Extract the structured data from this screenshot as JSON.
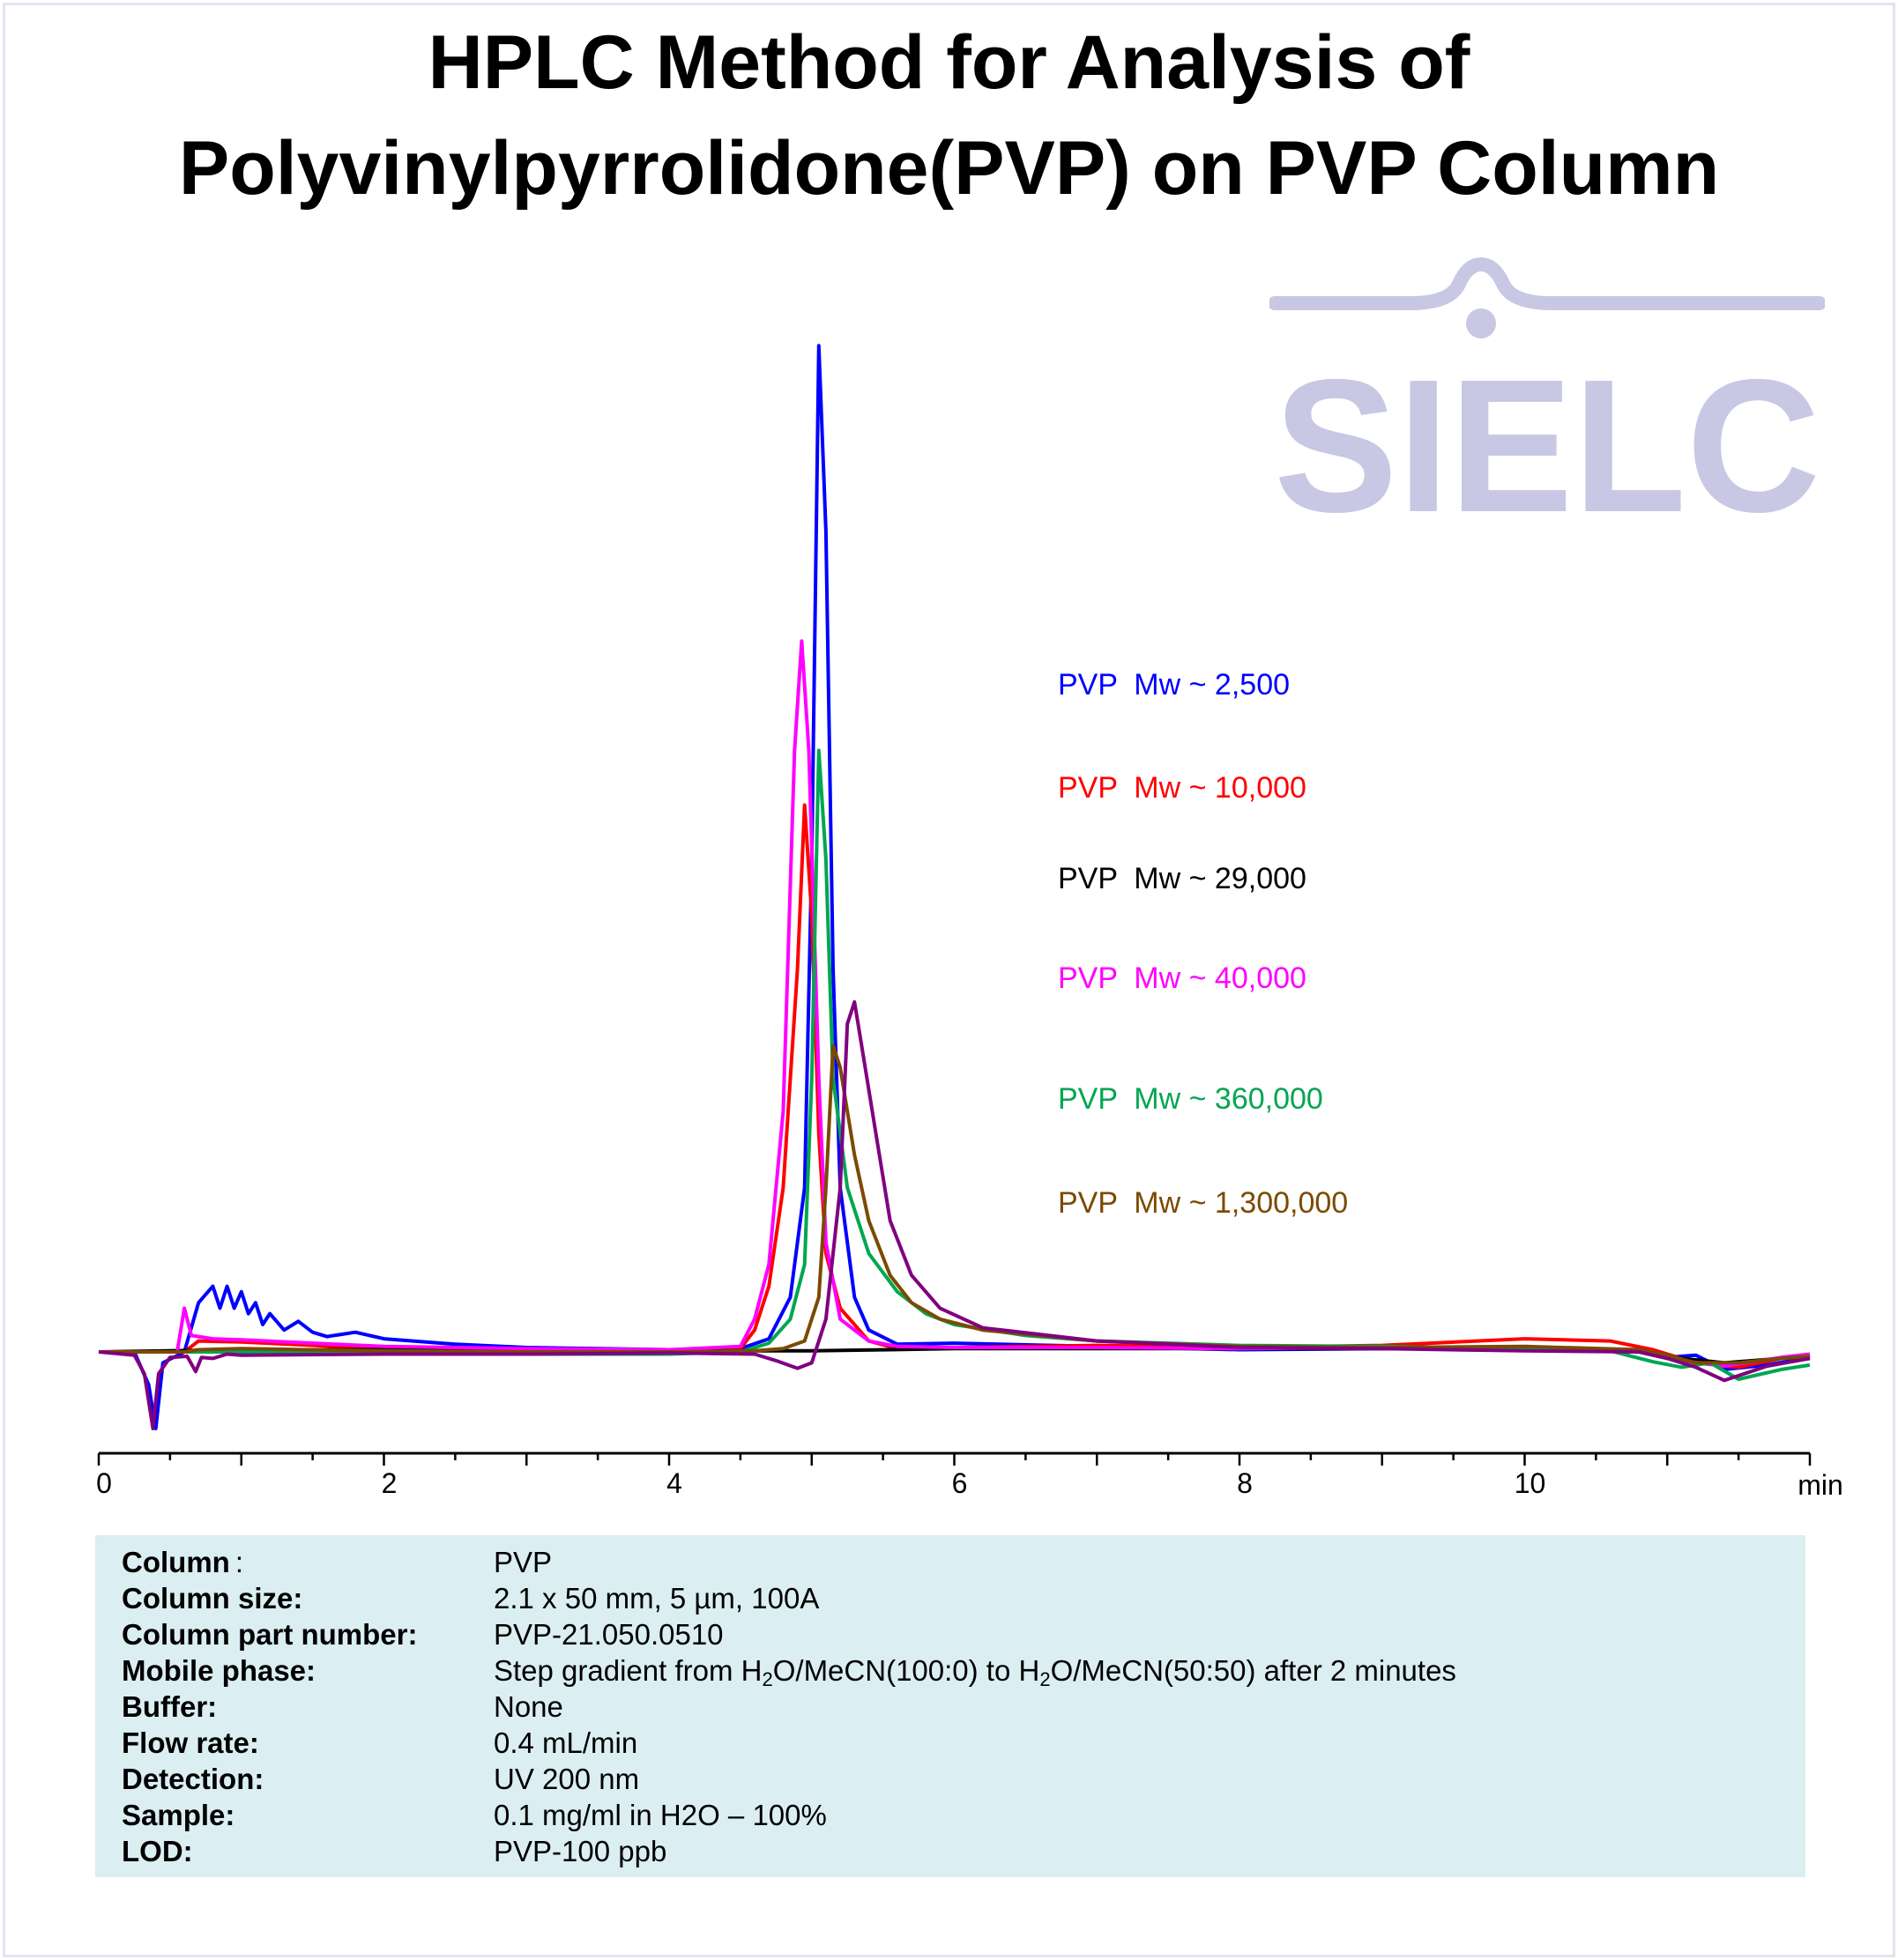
{
  "title": {
    "line1": "HPLC Method for Analysis of",
    "line2": "Polyvinylpyrrolidone(PVP) on PVP Column"
  },
  "logo": {
    "text": "SIELC",
    "color": "#c8c8e4"
  },
  "chart_data": {
    "type": "line",
    "title": "HPLC Method for Analysis of Polyvinylpyrrolidone(PVP) on PVP Column",
    "xlabel": "min",
    "ylabel": "",
    "xlim": [
      0,
      12
    ],
    "x_ticks": [
      0,
      2,
      4,
      6,
      8,
      10
    ],
    "x_tick_labels": [
      "0",
      "2",
      "4",
      "6",
      "8",
      "10"
    ],
    "x_unit_label": "min",
    "ylim": [
      -15,
      100
    ],
    "grid": false,
    "legend_position": "right",
    "series": [
      {
        "name": "PVP  Mw ~ 2,500",
        "color": "#0000ff",
        "points": [
          [
            0,
            0
          ],
          [
            0.25,
            0
          ],
          [
            0.35,
            -3
          ],
          [
            0.4,
            -7
          ],
          [
            0.45,
            -1
          ],
          [
            0.6,
            0
          ],
          [
            0.7,
            4.5
          ],
          [
            0.8,
            6
          ],
          [
            0.85,
            4
          ],
          [
            0.9,
            6
          ],
          [
            0.95,
            4
          ],
          [
            1.0,
            5.5
          ],
          [
            1.05,
            3.5
          ],
          [
            1.1,
            4.5
          ],
          [
            1.15,
            2.5
          ],
          [
            1.2,
            3.5
          ],
          [
            1.3,
            2
          ],
          [
            1.4,
            2.8
          ],
          [
            1.5,
            1.8
          ],
          [
            1.6,
            1.4
          ],
          [
            1.8,
            1.8
          ],
          [
            2.0,
            1.2
          ],
          [
            2.5,
            0.7
          ],
          [
            3.0,
            0.4
          ],
          [
            3.5,
            0.3
          ],
          [
            4.0,
            0.2
          ],
          [
            4.5,
            0.3
          ],
          [
            4.7,
            1.2
          ],
          [
            4.85,
            5
          ],
          [
            4.95,
            15
          ],
          [
            5.0,
            45
          ],
          [
            5.05,
            92
          ],
          [
            5.1,
            75
          ],
          [
            5.15,
            35
          ],
          [
            5.2,
            15
          ],
          [
            5.3,
            5
          ],
          [
            5.4,
            2
          ],
          [
            5.6,
            0.7
          ],
          [
            6.0,
            0.8
          ],
          [
            7.0,
            0.5
          ],
          [
            8.0,
            0.2
          ],
          [
            9.0,
            0.3
          ],
          [
            10.0,
            0.3
          ],
          [
            10.8,
            0.1
          ],
          [
            11.0,
            -0.5
          ],
          [
            11.2,
            -0.3
          ],
          [
            11.4,
            -1.6
          ],
          [
            11.7,
            -1.2
          ],
          [
            12.0,
            -0.5
          ]
        ]
      },
      {
        "name": "PVP  Mw ~ 10,000",
        "color": "#ff0000",
        "points": [
          [
            0,
            0
          ],
          [
            0.6,
            0
          ],
          [
            0.7,
            1
          ],
          [
            1.0,
            0.9
          ],
          [
            2.0,
            0.3
          ],
          [
            3.0,
            0.1
          ],
          [
            4.0,
            0.1
          ],
          [
            4.5,
            0.3
          ],
          [
            4.6,
            2
          ],
          [
            4.7,
            6
          ],
          [
            4.8,
            15
          ],
          [
            4.9,
            35
          ],
          [
            4.95,
            50
          ],
          [
            5.0,
            40
          ],
          [
            5.05,
            20
          ],
          [
            5.1,
            9
          ],
          [
            5.2,
            4
          ],
          [
            5.4,
            1
          ],
          [
            5.6,
            0.3
          ],
          [
            6.0,
            0.4
          ],
          [
            7.0,
            0.6
          ],
          [
            8.0,
            0.4
          ],
          [
            9.0,
            0.6
          ],
          [
            10.0,
            1.2
          ],
          [
            10.6,
            1.0
          ],
          [
            10.9,
            0.2
          ],
          [
            11.2,
            -1.0
          ],
          [
            11.5,
            -1.4
          ],
          [
            11.8,
            -0.6
          ],
          [
            12.0,
            -0.3
          ]
        ]
      },
      {
        "name": "PVP  Mw ~ 29,000",
        "color": "#000000",
        "points": [
          [
            0,
            0
          ],
          [
            1.0,
            0.2
          ],
          [
            2.0,
            0.2
          ],
          [
            3.0,
            0.1
          ],
          [
            4.0,
            0.1
          ],
          [
            5.0,
            0.1
          ],
          [
            6.0,
            0.3
          ],
          [
            7.0,
            0.3
          ],
          [
            8.0,
            0.3
          ],
          [
            9.0,
            0.3
          ],
          [
            10.0,
            0.3
          ],
          [
            10.8,
            0.1
          ],
          [
            11.1,
            -0.6
          ],
          [
            11.4,
            -1.0
          ],
          [
            11.8,
            -0.6
          ],
          [
            12.0,
            -0.3
          ]
        ]
      },
      {
        "name": "PVP  Mw ~ 40,000",
        "color": "#ff00ff",
        "points": [
          [
            0,
            0
          ],
          [
            0.55,
            0
          ],
          [
            0.6,
            4
          ],
          [
            0.65,
            1.5
          ],
          [
            0.8,
            1.2
          ],
          [
            1.0,
            1.1
          ],
          [
            2.0,
            0.5
          ],
          [
            3.0,
            0.3
          ],
          [
            4.0,
            0.2
          ],
          [
            4.5,
            0.5
          ],
          [
            4.6,
            3
          ],
          [
            4.7,
            8
          ],
          [
            4.8,
            22
          ],
          [
            4.88,
            55
          ],
          [
            4.93,
            65
          ],
          [
            4.98,
            55
          ],
          [
            5.05,
            25
          ],
          [
            5.1,
            10
          ],
          [
            5.2,
            3
          ],
          [
            5.4,
            1
          ],
          [
            5.6,
            0.5
          ],
          [
            6.0,
            0.4
          ],
          [
            7.0,
            0.4
          ],
          [
            8.0,
            0.3
          ],
          [
            9.0,
            0.4
          ],
          [
            10.0,
            0.4
          ],
          [
            10.8,
            0.2
          ],
          [
            11.1,
            -0.8
          ],
          [
            11.4,
            -1.3
          ],
          [
            11.8,
            -0.5
          ],
          [
            12.0,
            -0.2
          ]
        ]
      },
      {
        "name": "PVP  Mw ~ 360,000",
        "color": "#00a651",
        "points": [
          [
            0,
            0
          ],
          [
            1.0,
            0
          ],
          [
            2.0,
            -0.1
          ],
          [
            3.0,
            -0.2
          ],
          [
            4.0,
            -0.2
          ],
          [
            4.5,
            0
          ],
          [
            4.7,
            0.8
          ],
          [
            4.85,
            3
          ],
          [
            4.95,
            8
          ],
          [
            5.0,
            25
          ],
          [
            5.05,
            55
          ],
          [
            5.1,
            45
          ],
          [
            5.15,
            25
          ],
          [
            5.25,
            15
          ],
          [
            5.4,
            9
          ],
          [
            5.6,
            5.5
          ],
          [
            5.8,
            3.5
          ],
          [
            6.0,
            2.5
          ],
          [
            6.5,
            1.5
          ],
          [
            7.0,
            1.0
          ],
          [
            8.0,
            0.6
          ],
          [
            9.0,
            0.5
          ],
          [
            10.0,
            0.3
          ],
          [
            10.6,
            0.1
          ],
          [
            10.9,
            -0.9
          ],
          [
            11.1,
            -1.4
          ],
          [
            11.3,
            -1.0
          ],
          [
            11.5,
            -2.5
          ],
          [
            11.8,
            -1.6
          ],
          [
            12.0,
            -1.2
          ]
        ]
      },
      {
        "name": "PVP  Mw ~ 1,300,000",
        "color": "#7b4a00",
        "points": [
          [
            0,
            0
          ],
          [
            0.6,
            0
          ],
          [
            0.7,
            0.2
          ],
          [
            1.0,
            0.3
          ],
          [
            2.0,
            0.1
          ],
          [
            3.0,
            0
          ],
          [
            4.0,
            0
          ],
          [
            4.6,
            0.1
          ],
          [
            4.8,
            0.3
          ],
          [
            4.95,
            1
          ],
          [
            5.05,
            5
          ],
          [
            5.1,
            15
          ],
          [
            5.15,
            28
          ],
          [
            5.2,
            26
          ],
          [
            5.3,
            18
          ],
          [
            5.4,
            12
          ],
          [
            5.55,
            7
          ],
          [
            5.7,
            4.5
          ],
          [
            5.9,
            3.0
          ],
          [
            6.2,
            2.0
          ],
          [
            7.0,
            1.0
          ],
          [
            8.0,
            0.5
          ],
          [
            9.0,
            0.4
          ],
          [
            10.0,
            0.5
          ],
          [
            10.8,
            0.2
          ],
          [
            11.0,
            -0.3
          ],
          [
            11.2,
            -1.0
          ],
          [
            11.5,
            -1.0
          ],
          [
            11.8,
            -0.6
          ],
          [
            12.0,
            -0.4
          ]
        ]
      },
      {
        "name": "",
        "color": "#800080",
        "points": [
          [
            0,
            0
          ],
          [
            0.25,
            -0.3
          ],
          [
            0.32,
            -2
          ],
          [
            0.38,
            -7
          ],
          [
            0.42,
            -2
          ],
          [
            0.5,
            -0.5
          ],
          [
            0.62,
            -0.4
          ],
          [
            0.68,
            -1.8
          ],
          [
            0.72,
            -0.5
          ],
          [
            0.8,
            -0.6
          ],
          [
            0.9,
            -0.2
          ],
          [
            1.0,
            -0.3
          ],
          [
            2.0,
            -0.2
          ],
          [
            3.0,
            -0.2
          ],
          [
            4.0,
            -0.1
          ],
          [
            4.6,
            -0.2
          ],
          [
            4.75,
            -0.8
          ],
          [
            4.9,
            -1.5
          ],
          [
            5.0,
            -1
          ],
          [
            5.1,
            3
          ],
          [
            5.2,
            15
          ],
          [
            5.25,
            30
          ],
          [
            5.3,
            32
          ],
          [
            5.35,
            28
          ],
          [
            5.45,
            20
          ],
          [
            5.55,
            12
          ],
          [
            5.7,
            7
          ],
          [
            5.9,
            4
          ],
          [
            6.2,
            2.2
          ],
          [
            7.0,
            1.0
          ],
          [
            8.0,
            0.4
          ],
          [
            9.0,
            0.3
          ],
          [
            10.0,
            0.1
          ],
          [
            10.8,
            0
          ],
          [
            11.0,
            -0.6
          ],
          [
            11.2,
            -1.4
          ],
          [
            11.4,
            -2.6
          ],
          [
            11.7,
            -1.3
          ],
          [
            12.0,
            -0.6
          ]
        ]
      }
    ]
  },
  "legend": [
    {
      "label": "PVP  Mw ~ 2,500",
      "color": "#0000ff"
    },
    {
      "label": "PVP  Mw ~ 10,000",
      "color": "#ff0000"
    },
    {
      "label": "PVP  Mw ~ 29,000",
      "color": "#000000"
    },
    {
      "label": "PVP  Mw ~ 40,000",
      "color": "#ff00ff"
    },
    {
      "label": "PVP  Mw ~ 360,000",
      "color": "#00a651"
    },
    {
      "label": "PVP  Mw ~ 1,300,000",
      "color": "#7b4a00"
    }
  ],
  "info": {
    "background": "#dbeef2",
    "rows": [
      {
        "label": "Column",
        "sep": ":",
        "value": "PVP"
      },
      {
        "label": "Column size:",
        "value": "2.1 x 50 mm, 5 µm, 100A"
      },
      {
        "label": "Column part number:",
        "value": "PVP-21.050.0510"
      },
      {
        "label": "Mobile phase:",
        "value_parts": [
          "Step gradient from H",
          "2",
          "O/MeCN(100:0) to H",
          "2",
          "O/MeCN(50:50) after 2 minutes"
        ]
      },
      {
        "label": "Buffer:",
        "value": "None"
      },
      {
        "label": "Flow rate:",
        "value": "0.4  mL/min"
      },
      {
        "label": "Detection:",
        "value": "UV 200 nm"
      },
      {
        "label": "Sample:",
        "value": "0.1 mg/ml in H2O – 100%"
      },
      {
        "label": "LOD:",
        "value": "PVP-100 ppb"
      }
    ]
  }
}
